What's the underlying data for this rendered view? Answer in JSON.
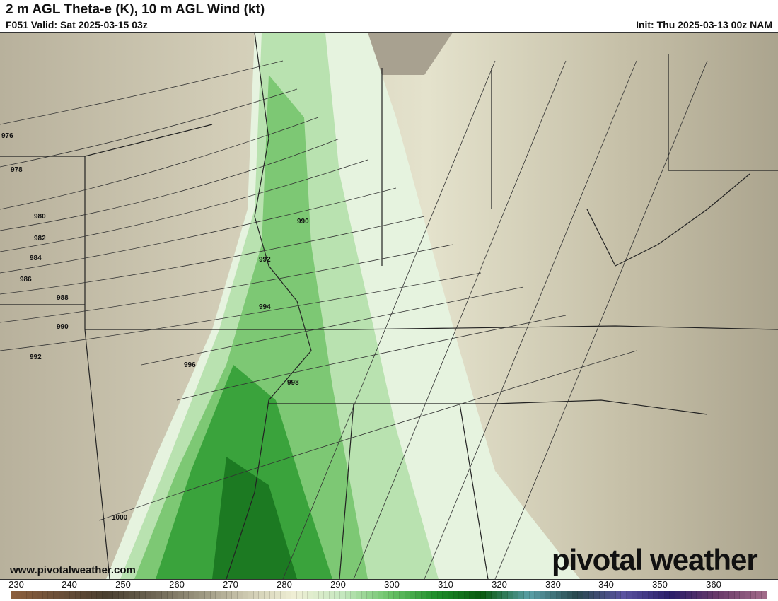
{
  "header": {
    "title": "2 m AGL Theta-e (K), 10 m AGL Wind (kt)",
    "valid": "F051 Valid: Sat 2025-03-15 03z",
    "init": "Init: Thu 2025-03-13 00z NAM"
  },
  "map": {
    "pressure_labels": [
      "976",
      "978",
      "980",
      "982",
      "984",
      "986",
      "988",
      "990",
      "992",
      "990",
      "992",
      "994",
      "996",
      "998",
      "1000"
    ],
    "watermark_url": "www.pivotalweather.com",
    "logo_text": "pivotal weather"
  },
  "colorbar": {
    "tick_labels": [
      "230",
      "240",
      "250",
      "260",
      "270",
      "280",
      "290",
      "300",
      "310",
      "320",
      "330",
      "340",
      "350",
      "360"
    ],
    "range": [
      230,
      370
    ],
    "colors": [
      "#8b5e3c",
      "#6b4f38",
      "#4a3f30",
      "#6e6654",
      "#9c9780",
      "#cfcbb2",
      "#efefd5",
      "#c6e8c0",
      "#6ec46a",
      "#1f8f2a",
      "#0a5a10",
      "#5aa0a8",
      "#28484e",
      "#5a52a0",
      "#2a1e6a",
      "#6a3a6a",
      "#a06a88"
    ]
  }
}
